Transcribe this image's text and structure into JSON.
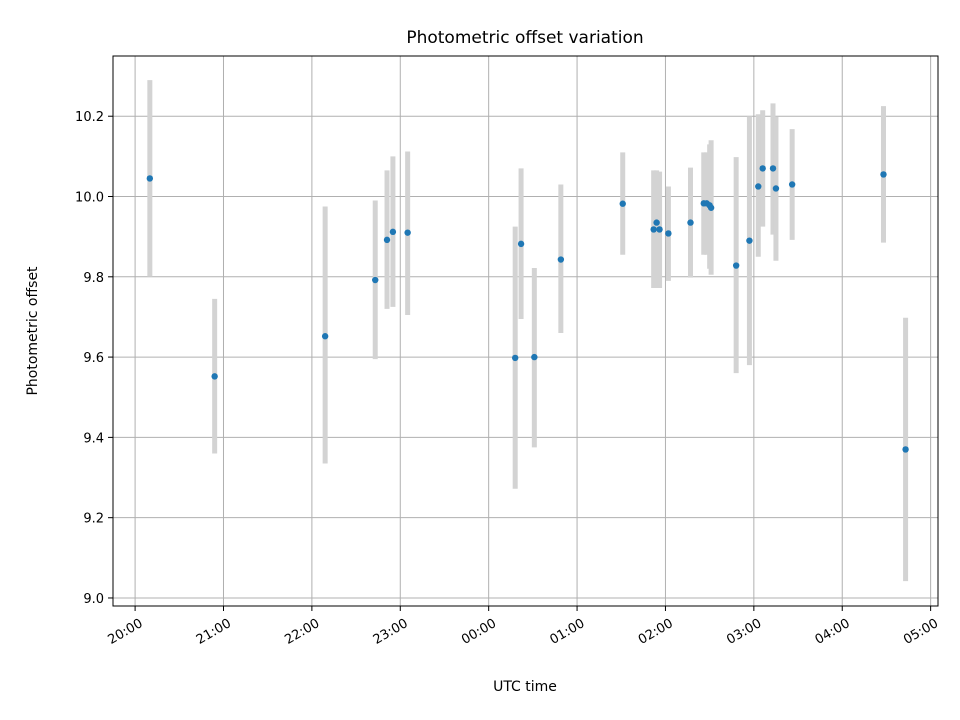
{
  "chart_data": {
    "type": "scatter",
    "title": "Photometric offset variation",
    "xlabel": "UTC time",
    "ylabel": "Photometric offset",
    "x_format": "HH:MM",
    "x_start_date": "",
    "xlim": [
      "19:45",
      "05:05"
    ],
    "ylim": [
      8.98,
      10.35
    ],
    "xticks": [
      "20:00",
      "21:00",
      "22:00",
      "23:00",
      "00:00",
      "01:00",
      "02:00",
      "03:00",
      "04:00",
      "05:00"
    ],
    "yticks": [
      "9.0",
      "9.2",
      "9.4",
      "9.6",
      "9.8",
      "10.0",
      "10.2"
    ],
    "grid": true,
    "colors": {
      "point": "#1f77b4",
      "errorbar": "#d3d3d3",
      "grid": "#b0b0b0"
    },
    "points": [
      {
        "x": "20:10",
        "y": 10.045,
        "ylow": 9.8,
        "yhigh": 10.29
      },
      {
        "x": "20:54",
        "y": 9.552,
        "ylow": 9.36,
        "yhigh": 9.745
      },
      {
        "x": "22:09",
        "y": 9.652,
        "ylow": 9.335,
        "yhigh": 9.975
      },
      {
        "x": "22:43",
        "y": 9.792,
        "ylow": 9.595,
        "yhigh": 9.99
      },
      {
        "x": "22:51",
        "y": 9.892,
        "ylow": 9.72,
        "yhigh": 10.065
      },
      {
        "x": "22:55",
        "y": 9.912,
        "ylow": 9.725,
        "yhigh": 10.1
      },
      {
        "x": "23:05",
        "y": 9.91,
        "ylow": 9.705,
        "yhigh": 10.112
      },
      {
        "x": "00:18",
        "y": 9.598,
        "ylow": 9.272,
        "yhigh": 9.925
      },
      {
        "x": "00:22",
        "y": 9.882,
        "ylow": 9.695,
        "yhigh": 10.07
      },
      {
        "x": "00:31",
        "y": 9.6,
        "ylow": 9.375,
        "yhigh": 9.822
      },
      {
        "x": "00:49",
        "y": 9.843,
        "ylow": 9.66,
        "yhigh": 10.03
      },
      {
        "x": "01:31",
        "y": 9.982,
        "ylow": 9.855,
        "yhigh": 10.11
      },
      {
        "x": "01:52",
        "y": 9.918,
        "ylow": 9.772,
        "yhigh": 10.065
      },
      {
        "x": "01:54",
        "y": 9.935,
        "ylow": 9.772,
        "yhigh": 10.065
      },
      {
        "x": "01:56",
        "y": 9.918,
        "ylow": 9.772,
        "yhigh": 10.062
      },
      {
        "x": "02:02",
        "y": 9.908,
        "ylow": 9.79,
        "yhigh": 10.025
      },
      {
        "x": "02:17",
        "y": 9.935,
        "ylow": 9.798,
        "yhigh": 10.072
      },
      {
        "x": "02:26",
        "y": 9.983,
        "ylow": 9.855,
        "yhigh": 10.11
      },
      {
        "x": "02:28",
        "y": 9.983,
        "ylow": 9.855,
        "yhigh": 10.11
      },
      {
        "x": "02:30",
        "y": 9.978,
        "ylow": 9.82,
        "yhigh": 10.13
      },
      {
        "x": "02:31",
        "y": 9.972,
        "ylow": 9.805,
        "yhigh": 10.14
      },
      {
        "x": "02:48",
        "y": 9.828,
        "ylow": 9.56,
        "yhigh": 10.098
      },
      {
        "x": "02:57",
        "y": 9.89,
        "ylow": 9.58,
        "yhigh": 10.2
      },
      {
        "x": "03:03",
        "y": 10.025,
        "ylow": 9.85,
        "yhigh": 10.205
      },
      {
        "x": "03:06",
        "y": 10.07,
        "ylow": 9.925,
        "yhigh": 10.215
      },
      {
        "x": "03:13",
        "y": 10.07,
        "ylow": 9.905,
        "yhigh": 10.232
      },
      {
        "x": "03:15",
        "y": 10.02,
        "ylow": 9.84,
        "yhigh": 10.198
      },
      {
        "x": "03:26",
        "y": 10.03,
        "ylow": 9.892,
        "yhigh": 10.168
      },
      {
        "x": "04:28",
        "y": 10.055,
        "ylow": 9.885,
        "yhigh": 10.225
      },
      {
        "x": "04:43",
        "y": 9.37,
        "ylow": 9.042,
        "yhigh": 9.698
      }
    ]
  }
}
